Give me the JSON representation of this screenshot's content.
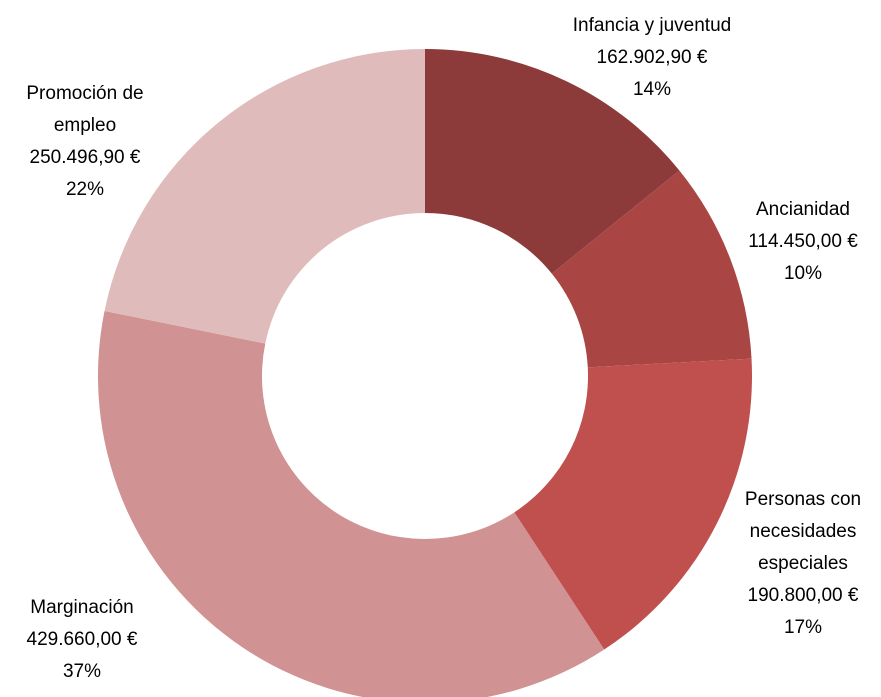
{
  "chart_data": {
    "type": "donut",
    "categories": [
      "Infancia y juventud",
      "Ancianidad",
      "Personas con necesidades especiales",
      "Marginación",
      "Promoción de empleo"
    ],
    "values": [
      162902.9,
      114450.0,
      190800.0,
      429660.0,
      250496.9
    ],
    "value_labels": [
      "162.902,90 €",
      "114.450,00 €",
      "190.800,00 €",
      "429.660,00 €",
      "250.496,90 €"
    ],
    "percent_labels": [
      "14%",
      "10%",
      "17%",
      "37%",
      "22%"
    ],
    "colors": [
      "#8c3a3a",
      "#a94644",
      "#c0504d",
      "#d09292",
      "#e0bbbb"
    ]
  }
}
